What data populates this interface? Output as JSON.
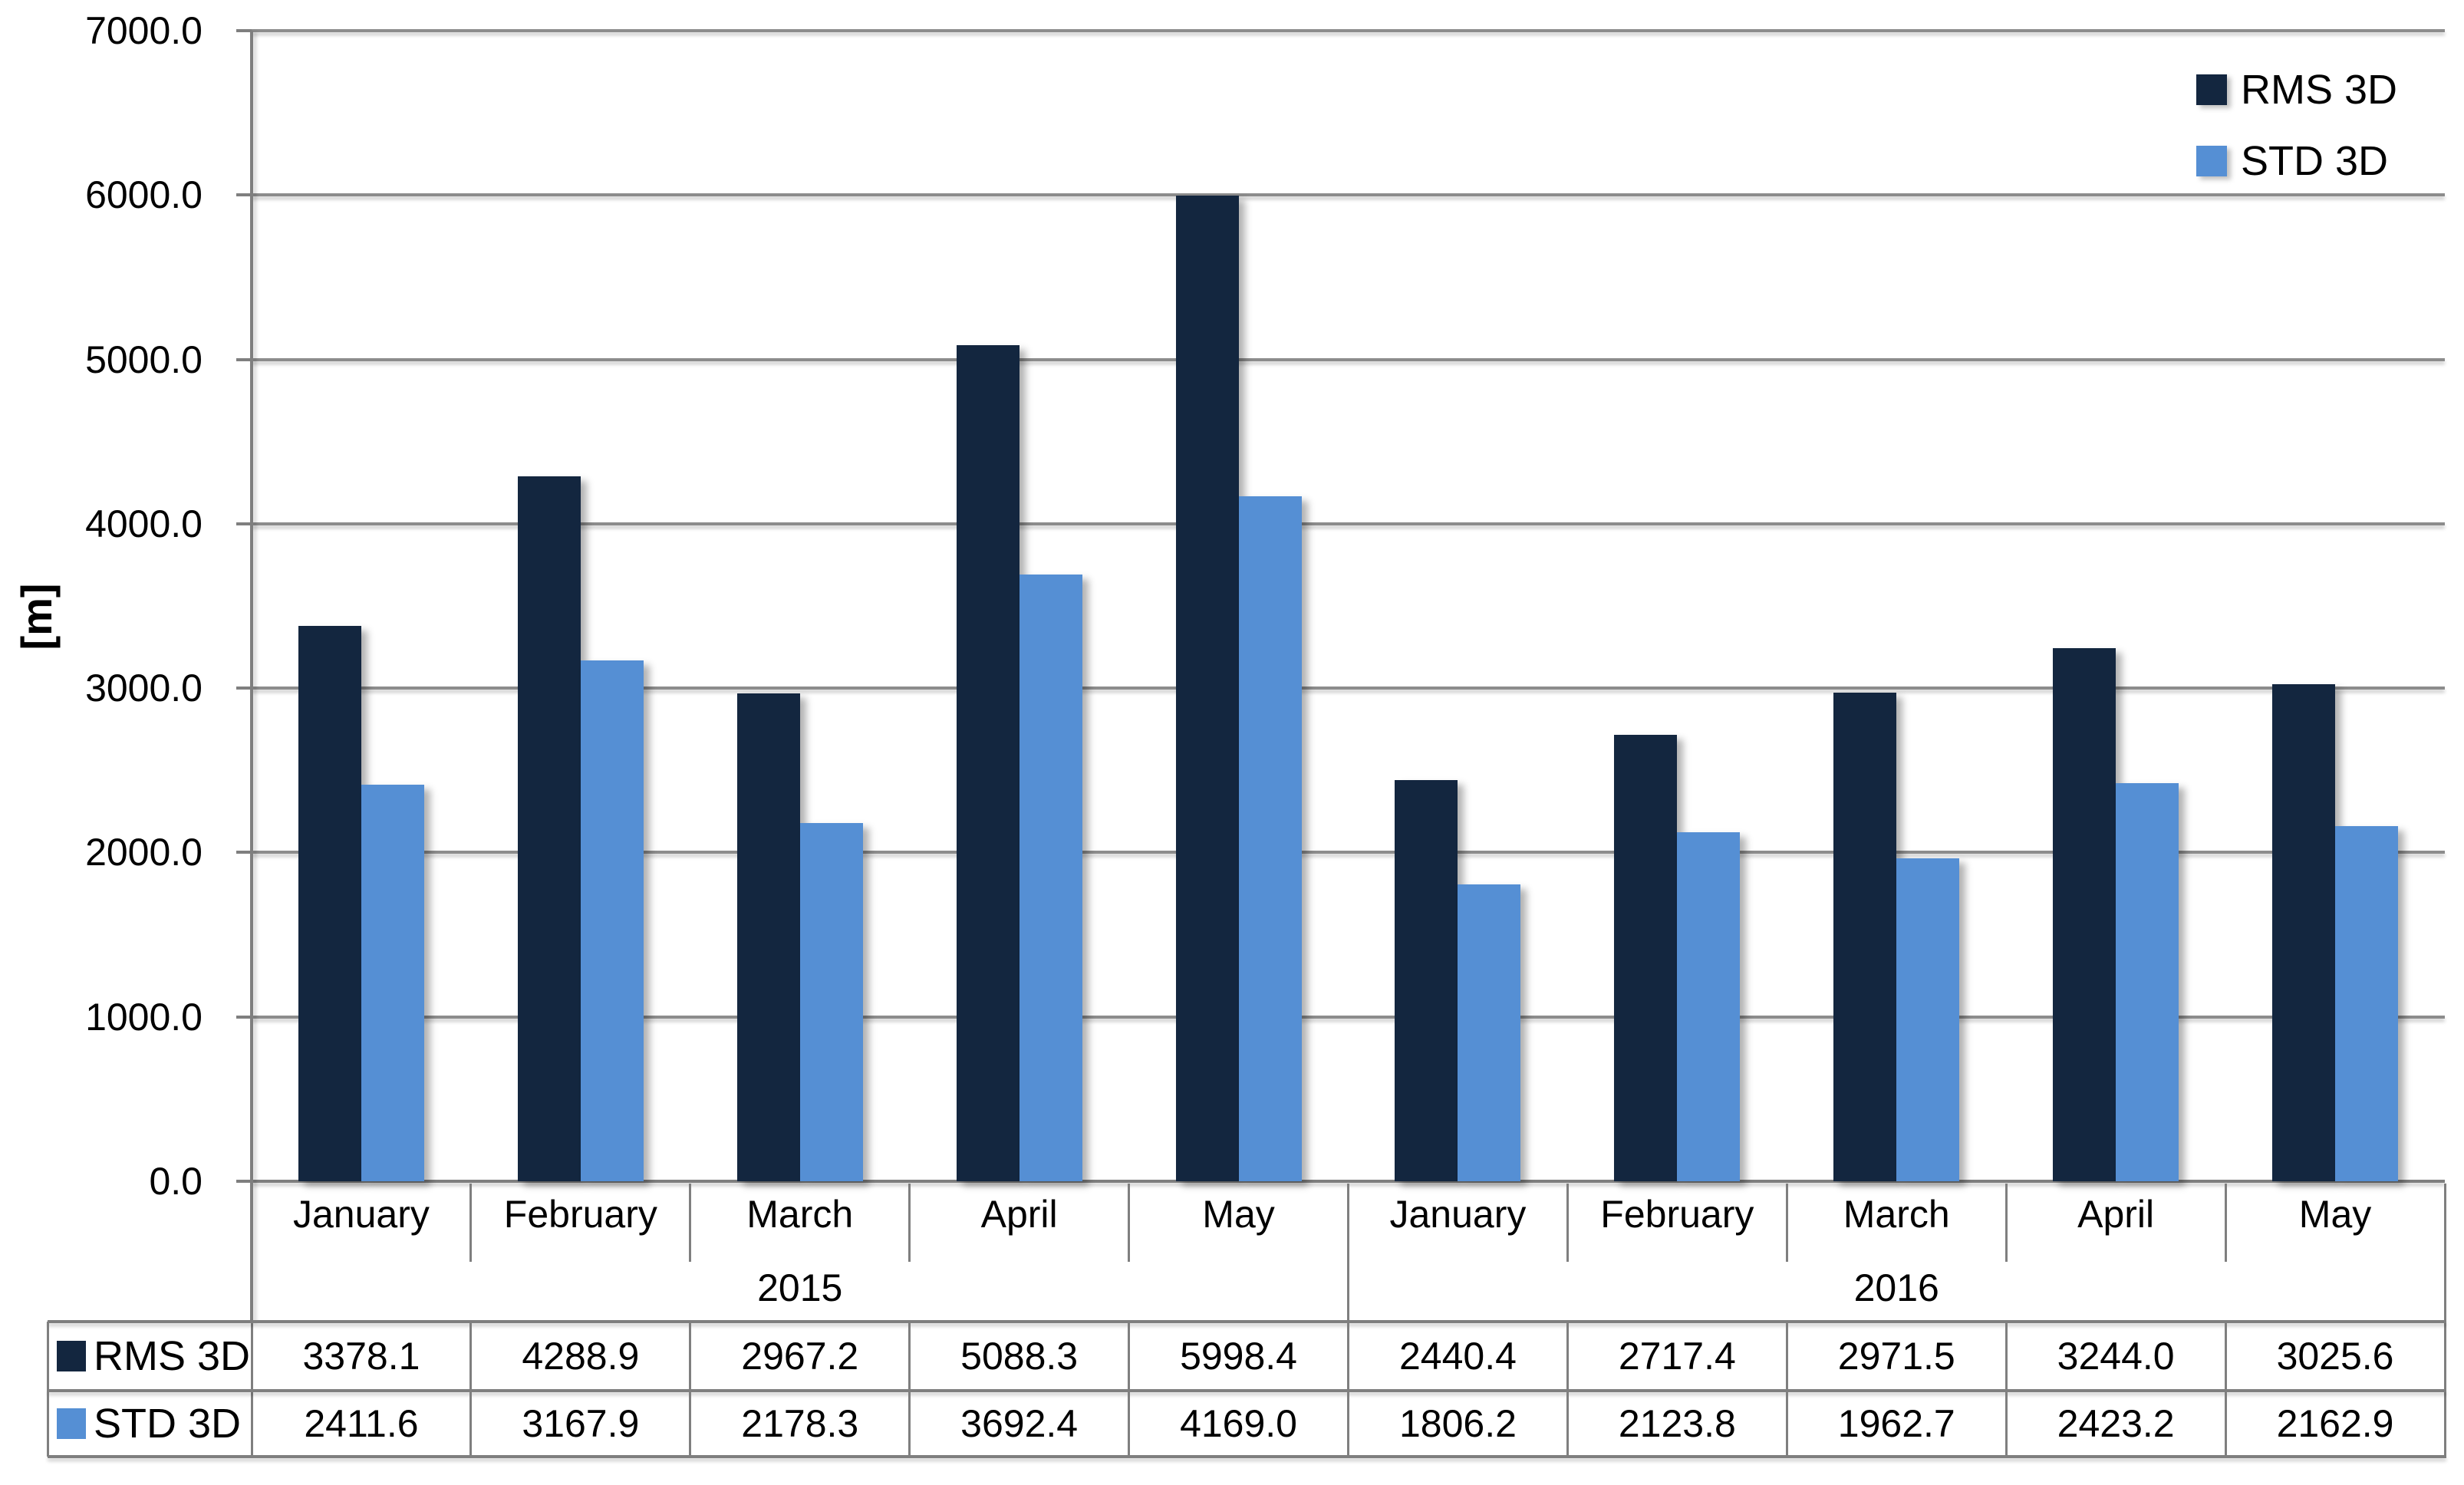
{
  "page": {
    "background": "#FFFFFF"
  },
  "chart_data": {
    "type": "bar",
    "title": "",
    "ylabel": "[m]",
    "xlabel": "",
    "ylim": [
      0,
      7000
    ],
    "ytick_interval": 1000,
    "ytick_labels": [
      "0.0",
      "1000.0",
      "2000.0",
      "3000.0",
      "4000.0",
      "5000.0",
      "6000.0",
      "7000.0"
    ],
    "grid": true,
    "legend_position": "top-right",
    "group_labels": [
      "2015",
      "2016"
    ],
    "categories": [
      "January",
      "February",
      "March",
      "April",
      "May",
      "January",
      "February",
      "March",
      "April",
      "May"
    ],
    "category_group_index": [
      0,
      0,
      0,
      0,
      0,
      1,
      1,
      1,
      1,
      1
    ],
    "series": [
      {
        "name": "RMS 3D",
        "color": "#13263F",
        "values": [
          3378.1,
          4288.9,
          2967.2,
          5088.3,
          5998.4,
          2440.4,
          2717.4,
          2971.5,
          3244.0,
          3025.6
        ]
      },
      {
        "name": "STD 3D",
        "color": "#558FD4",
        "values": [
          2411.6,
          3167.9,
          2178.3,
          3692.4,
          4169.0,
          1806.2,
          2123.8,
          1962.7,
          2423.2,
          2162.9
        ]
      }
    ],
    "data_table": {
      "show": true,
      "value_decimals": 1
    },
    "colors": {
      "grid_line": "#8C8C8C",
      "axis_line": "#7F7F7F",
      "table_border": "#7F7F7F",
      "text": "#000000"
    }
  }
}
